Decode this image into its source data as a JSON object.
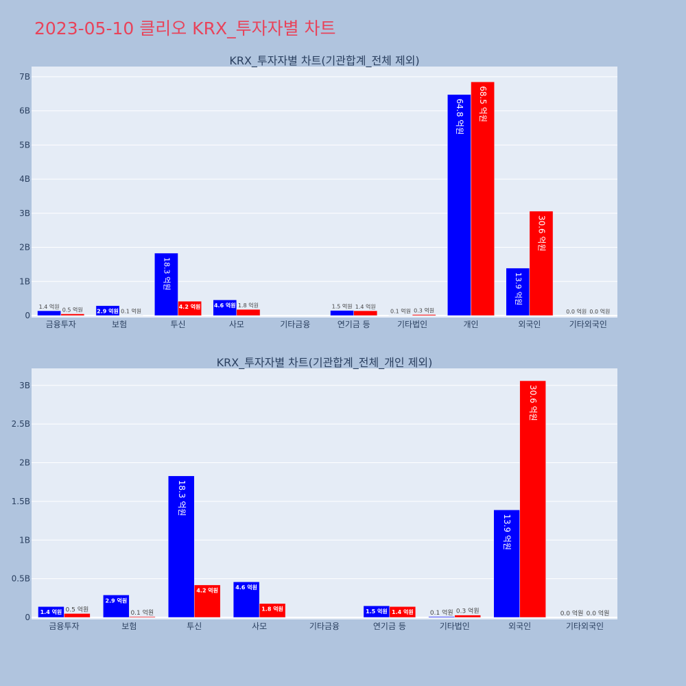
{
  "page": {
    "title": "2023-05-10 클리오 KRX_투자자별 차트"
  },
  "colors": {
    "background": "#b0c4de",
    "plot_bg": "#e5ecf6",
    "title": "#e8435a",
    "series_1": "#0000ff",
    "series_2": "#ff0000"
  },
  "chart_data": [
    {
      "type": "bar",
      "title": "KRX_투자자별 차트(기관합계_전체 제외)",
      "categories": [
        "금융투자",
        "보험",
        "투신",
        "사모",
        "기타금융",
        "연기금 등",
        "기타법인",
        "개인",
        "외국인",
        "기타외국인"
      ],
      "series": [
        {
          "color": "#0000ff",
          "values": [
            0.14,
            0.29,
            1.83,
            0.46,
            0,
            0.15,
            0.01,
            6.48,
            1.39,
            0.0
          ],
          "labels": [
            "1.4 억원",
            "2.9 억원",
            "18.3 억원",
            "4.6 억원",
            "",
            "1.5 억원",
            "0.1 억원",
            "64.8 억원",
            "13.9 억원",
            "0.0 억원"
          ]
        },
        {
          "color": "#ff0000",
          "values": [
            0.05,
            0.01,
            0.42,
            0.18,
            0,
            0.14,
            0.03,
            6.85,
            3.06,
            0.0
          ],
          "labels": [
            "0.5 억원",
            "0.1 억원",
            "4.2 억원",
            "1.8 억원",
            "",
            "1.4 억원",
            "0.3 억원",
            "68.5 억원",
            "30.6 억원",
            "0.0 억원"
          ]
        }
      ],
      "yticks": [
        "0",
        "1B",
        "2B",
        "3B",
        "4B",
        "5B",
        "6B",
        "7B"
      ],
      "ylim": [
        0,
        7.3
      ],
      "grid": true
    },
    {
      "type": "bar",
      "title": "KRX_투자자별 차트(기관합계_전체_개인 제외)",
      "categories": [
        "금융투자",
        "보험",
        "투신",
        "사모",
        "기타금융",
        "연기금 등",
        "기타법인",
        "외국인",
        "기타외국인"
      ],
      "series": [
        {
          "color": "#0000ff",
          "values": [
            0.14,
            0.29,
            1.83,
            0.46,
            0,
            0.15,
            0.01,
            1.39,
            0.0
          ],
          "labels": [
            "1.4 억원",
            "2.9 억원",
            "18.3 억원",
            "4.6 억원",
            "",
            "1.5 억원",
            "0.1 억원",
            "13.9 억원",
            "0.0 억원"
          ]
        },
        {
          "color": "#ff0000",
          "values": [
            0.05,
            0.01,
            0.42,
            0.18,
            0,
            0.14,
            0.03,
            3.06,
            0.0
          ],
          "labels": [
            "0.5 억원",
            "0.1 억원",
            "4.2 억원",
            "1.8 억원",
            "",
            "1.4 억원",
            "0.3 억원",
            "30.6 억원",
            "0.0 억원"
          ]
        }
      ],
      "yticks": [
        "0",
        "0.5B",
        "1B",
        "1.5B",
        "2B",
        "2.5B",
        "3B"
      ],
      "ylim": [
        0,
        3.22
      ],
      "grid": true
    }
  ]
}
